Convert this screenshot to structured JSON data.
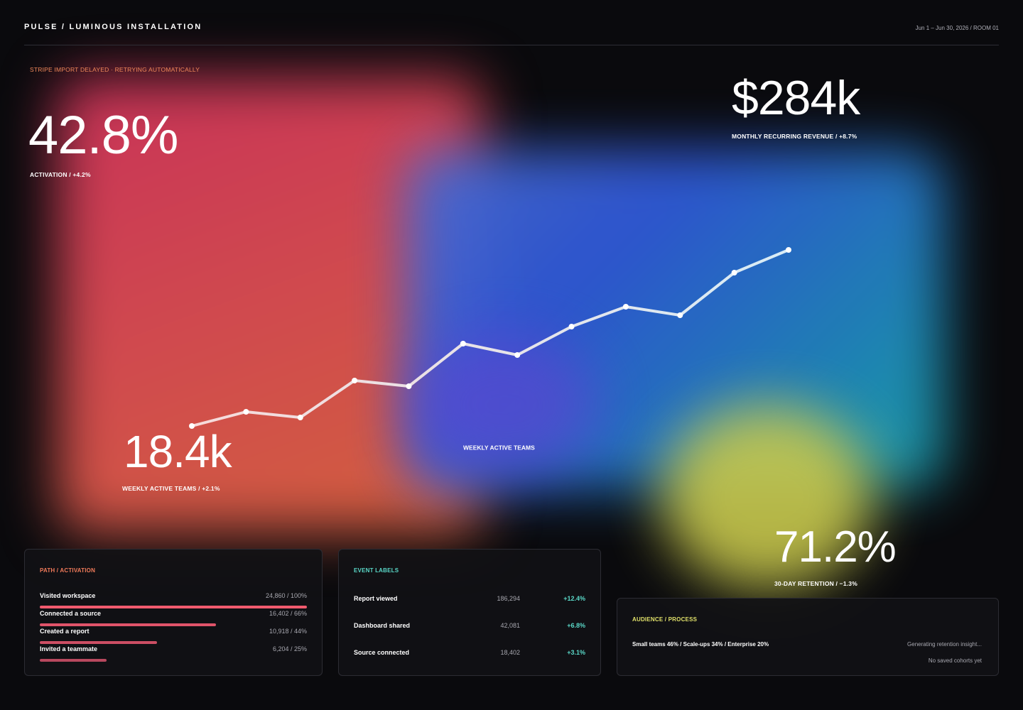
{
  "header": {
    "title": "PULSE / LUMINOUS INSTALLATION",
    "period": "Jun 1 – Jun 30, 2026 / ROOM 01"
  },
  "alert": "STRIPE IMPORT DELAYED · RETRYING AUTOMATICALLY",
  "kpis": [
    {
      "value": "42.8%",
      "label": "ACTIVATION / +4.2%"
    },
    {
      "value": "$284k",
      "label": "MONTHLY RECURRING REVENUE / +8.7%"
    },
    {
      "value": "18.4k",
      "label": "WEEKLY ACTIVE TEAMS / +2.1%"
    },
    {
      "value": "71.2%",
      "label": "30-DAY RETENTION / −1.3%"
    }
  ],
  "chart_data": {
    "type": "line",
    "title": "WEEKLY ACTIVE TEAMS",
    "values": [
      25,
      30,
      28,
      41,
      39,
      54,
      50,
      60,
      67,
      64,
      79,
      87
    ],
    "ylim": [
      0,
      100
    ],
    "color": "#ffffff"
  },
  "funnel": {
    "title": "PATH / ACTIVATION",
    "rows": [
      {
        "step": "Visited workspace",
        "share": 100,
        "share_label": "24,860 / 100%"
      },
      {
        "step": "Connected a source",
        "share": 66,
        "share_label": "16,402 / 66%"
      },
      {
        "step": "Created a report",
        "share": 44,
        "share_label": "10,918 / 44%"
      },
      {
        "step": "Invited a teammate",
        "share": 25,
        "share_label": "6,204 / 25%"
      }
    ]
  },
  "events": {
    "title": "EVENT LABELS",
    "rows": [
      [
        "Report viewed",
        "186,294",
        "+12.4%"
      ],
      [
        "Dashboard shared",
        "42,081",
        "+6.8%"
      ],
      [
        "Source connected",
        "18,402",
        "+3.1%"
      ]
    ]
  },
  "audience": {
    "title": "AUDIENCE / PROCESS",
    "breakdown": "Small teams 46% / Scale-ups 34% / Enterprise 20%",
    "status": "Generating retention insight...",
    "empty": "No saved cohorts yet"
  }
}
